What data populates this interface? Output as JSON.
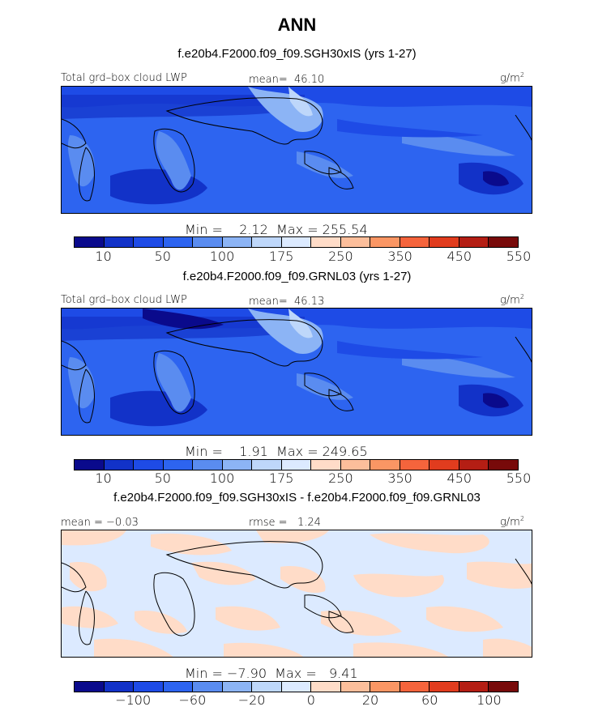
{
  "figure": {
    "title": "ANN"
  },
  "colors": {
    "abs_scale": [
      "#0a0a8c",
      "#1232c8",
      "#1e4be6",
      "#2d64f0",
      "#5a8cf0",
      "#8cb4f5",
      "#bed7fa",
      "#dceaff",
      "#ffdcc8",
      "#fcbe9b",
      "#fa9664",
      "#f5643c",
      "#e13c1e",
      "#b41e14",
      "#780a0a"
    ],
    "diff_scale": [
      "#0a0a8c",
      "#1232c8",
      "#1e4be6",
      "#2d64f0",
      "#5a8cf0",
      "#8cb4f5",
      "#bed7fa",
      "#dceaff",
      "#ffdcc8",
      "#fcbe9b",
      "#fa9664",
      "#f5643c",
      "#e13c1e",
      "#b41e14",
      "#780a0a"
    ]
  },
  "panels": [
    {
      "case_title": "f.e20b4.F2000.f09_f09.SGH30xIS (yrs 1-27)",
      "variable_label": "Total grd–box cloud LWP",
      "mean_label": "mean=  46.10",
      "units": "g/m",
      "units_exp": "2",
      "min_max": "Min =    2.12  Max = 255.54",
      "colorbar_ticks": [
        "10",
        "50",
        "100",
        "175",
        "250",
        "350",
        "450",
        "550"
      ]
    },
    {
      "case_title": "f.e20b4.F2000.f09_f09.GRNL03 (yrs 1-27)",
      "variable_label": "Total grd–box cloud LWP",
      "mean_label": "mean=  46.13",
      "units": "g/m",
      "units_exp": "2",
      "min_max": "Min =    1.91  Max = 249.65",
      "colorbar_ticks": [
        "10",
        "50",
        "100",
        "175",
        "250",
        "350",
        "450",
        "550"
      ]
    },
    {
      "case_title": "f.e20b4.F2000.f09_f09.SGH30xIS - f.e20b4.F2000.f09_f09.GRNL03",
      "mean_label": "mean = −0.03",
      "rmse_label": "rmse =   1.24",
      "units": "g/m",
      "units_exp": "2",
      "min_max": "Min = −7.90  Max =   9.41",
      "colorbar_ticks": [
        "−100",
        "−60",
        "−20",
        "0",
        "20",
        "60",
        "100"
      ]
    }
  ]
}
